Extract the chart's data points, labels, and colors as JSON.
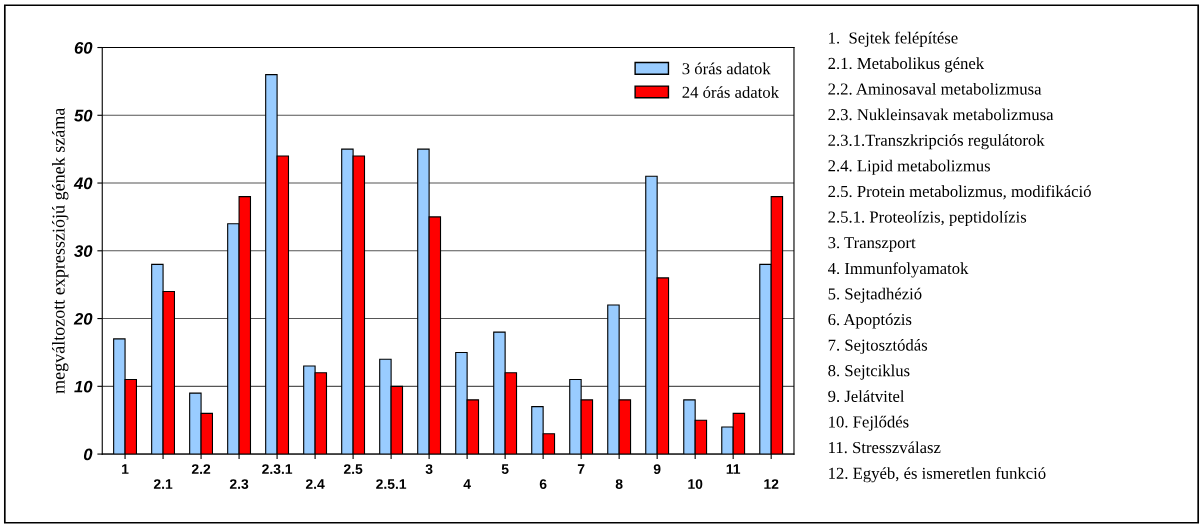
{
  "chart_data": {
    "type": "bar",
    "ylabel": "megváltozott expressziójú gének száma",
    "categories": [
      "1",
      "2.1",
      "2.2",
      "2.3",
      "2.3.1",
      "2.4",
      "2.5",
      "2.5.1",
      "3",
      "4",
      "5",
      "6",
      "7",
      "8",
      "9",
      "10",
      "11",
      "12"
    ],
    "series": [
      {
        "name": "3 órás adatok",
        "color": "#99ccff",
        "values": [
          17,
          28,
          9,
          34,
          56,
          13,
          45,
          14,
          45,
          15,
          18,
          7,
          11,
          22,
          41,
          8,
          4,
          28
        ]
      },
      {
        "name": "24 órás adatok",
        "color": "#ff0000",
        "values": [
          11,
          24,
          6,
          38,
          44,
          12,
          44,
          10,
          35,
          8,
          12,
          3,
          8,
          8,
          26,
          5,
          6,
          38
        ]
      }
    ],
    "ylim": [
      0,
      60
    ],
    "yticks": [
      0,
      10,
      20,
      30,
      40,
      50,
      60
    ],
    "grid": "y",
    "legend": "top right",
    "annotations": [
      "1.  Sejtek felépítése",
      "2.1. Metabolikus gének",
      "2.2. Aminosaval metabolizmusa",
      "2.3. Nukleinsavak metabolizmusa",
      "2.3.1.Transzkripciós regulátorok",
      "2.4. Lipid metabolizmus",
      "2.5. Protein metabolizmus, modifikáció",
      "2.5.1. Proteolízis, peptidolízis",
      "3. Transzport",
      "4. Immunfolyamatok",
      "5. Sejtadhézió",
      "6. Apoptózis",
      "7. Sejtosztódás",
      "8. Sejtciklus",
      "9. Jelátvitel",
      "10. Fejlődés",
      "11. Stresszválasz",
      "12. Egyéb, és ismeretlen funkció"
    ]
  }
}
